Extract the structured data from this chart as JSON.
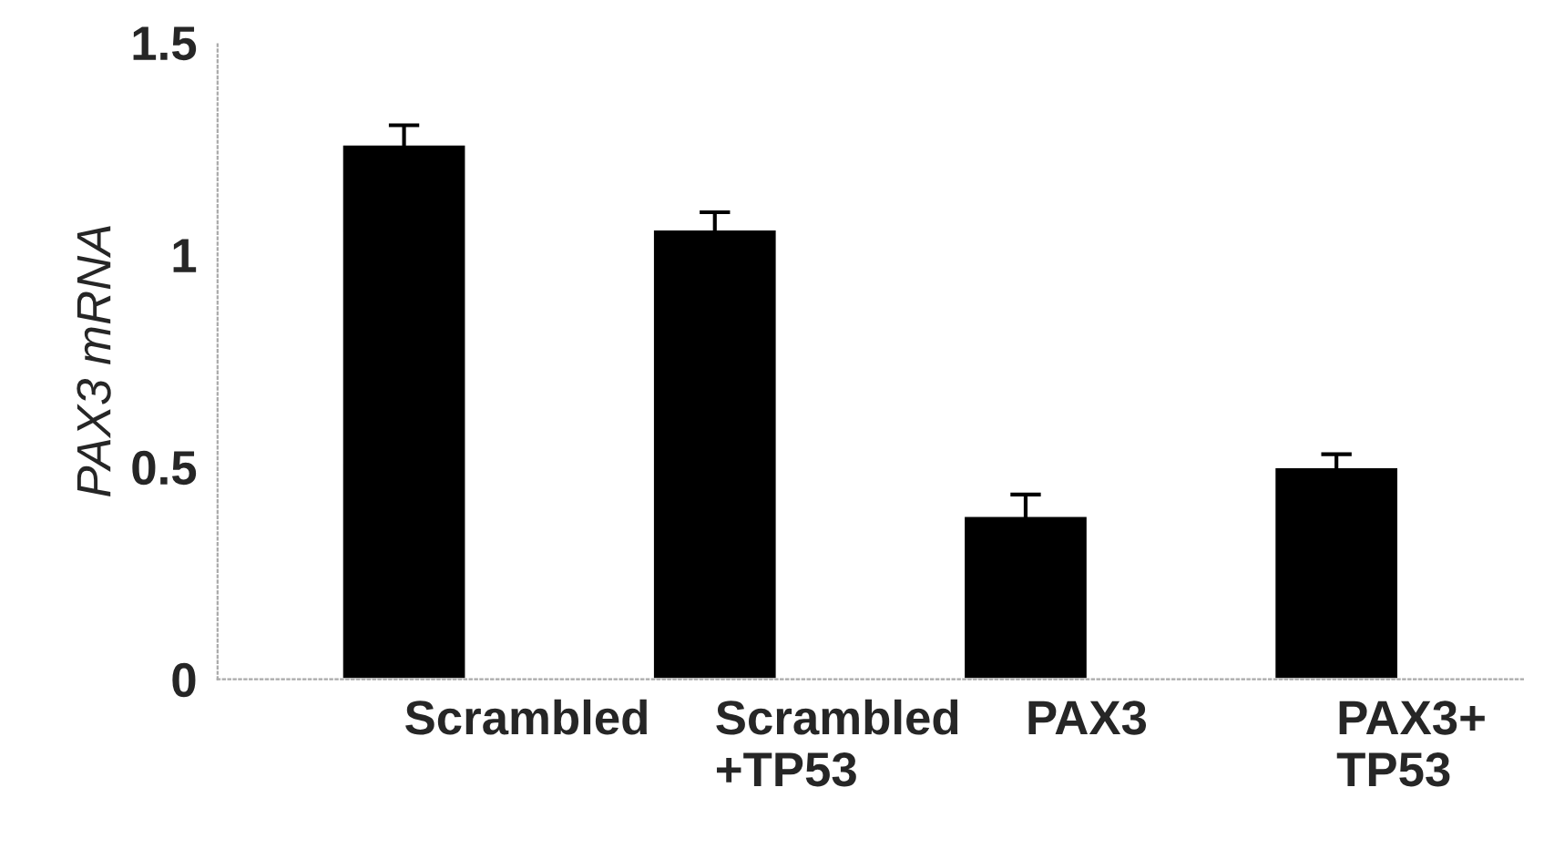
{
  "chart_data": {
    "type": "bar",
    "ylabel": "PAX3 mRNA",
    "categories": [
      "Scrambled",
      "Scrambled\n+TP53",
      "PAX3",
      "PAX3+\nTP53"
    ],
    "values": [
      1.26,
      1.06,
      0.385,
      0.5
    ],
    "errors": [
      0.045,
      0.04,
      0.05,
      0.03
    ],
    "color": "#000000",
    "ylim": [
      0,
      1.5
    ],
    "yticks": [
      0,
      0.5,
      1,
      1.5
    ],
    "grid": false
  }
}
